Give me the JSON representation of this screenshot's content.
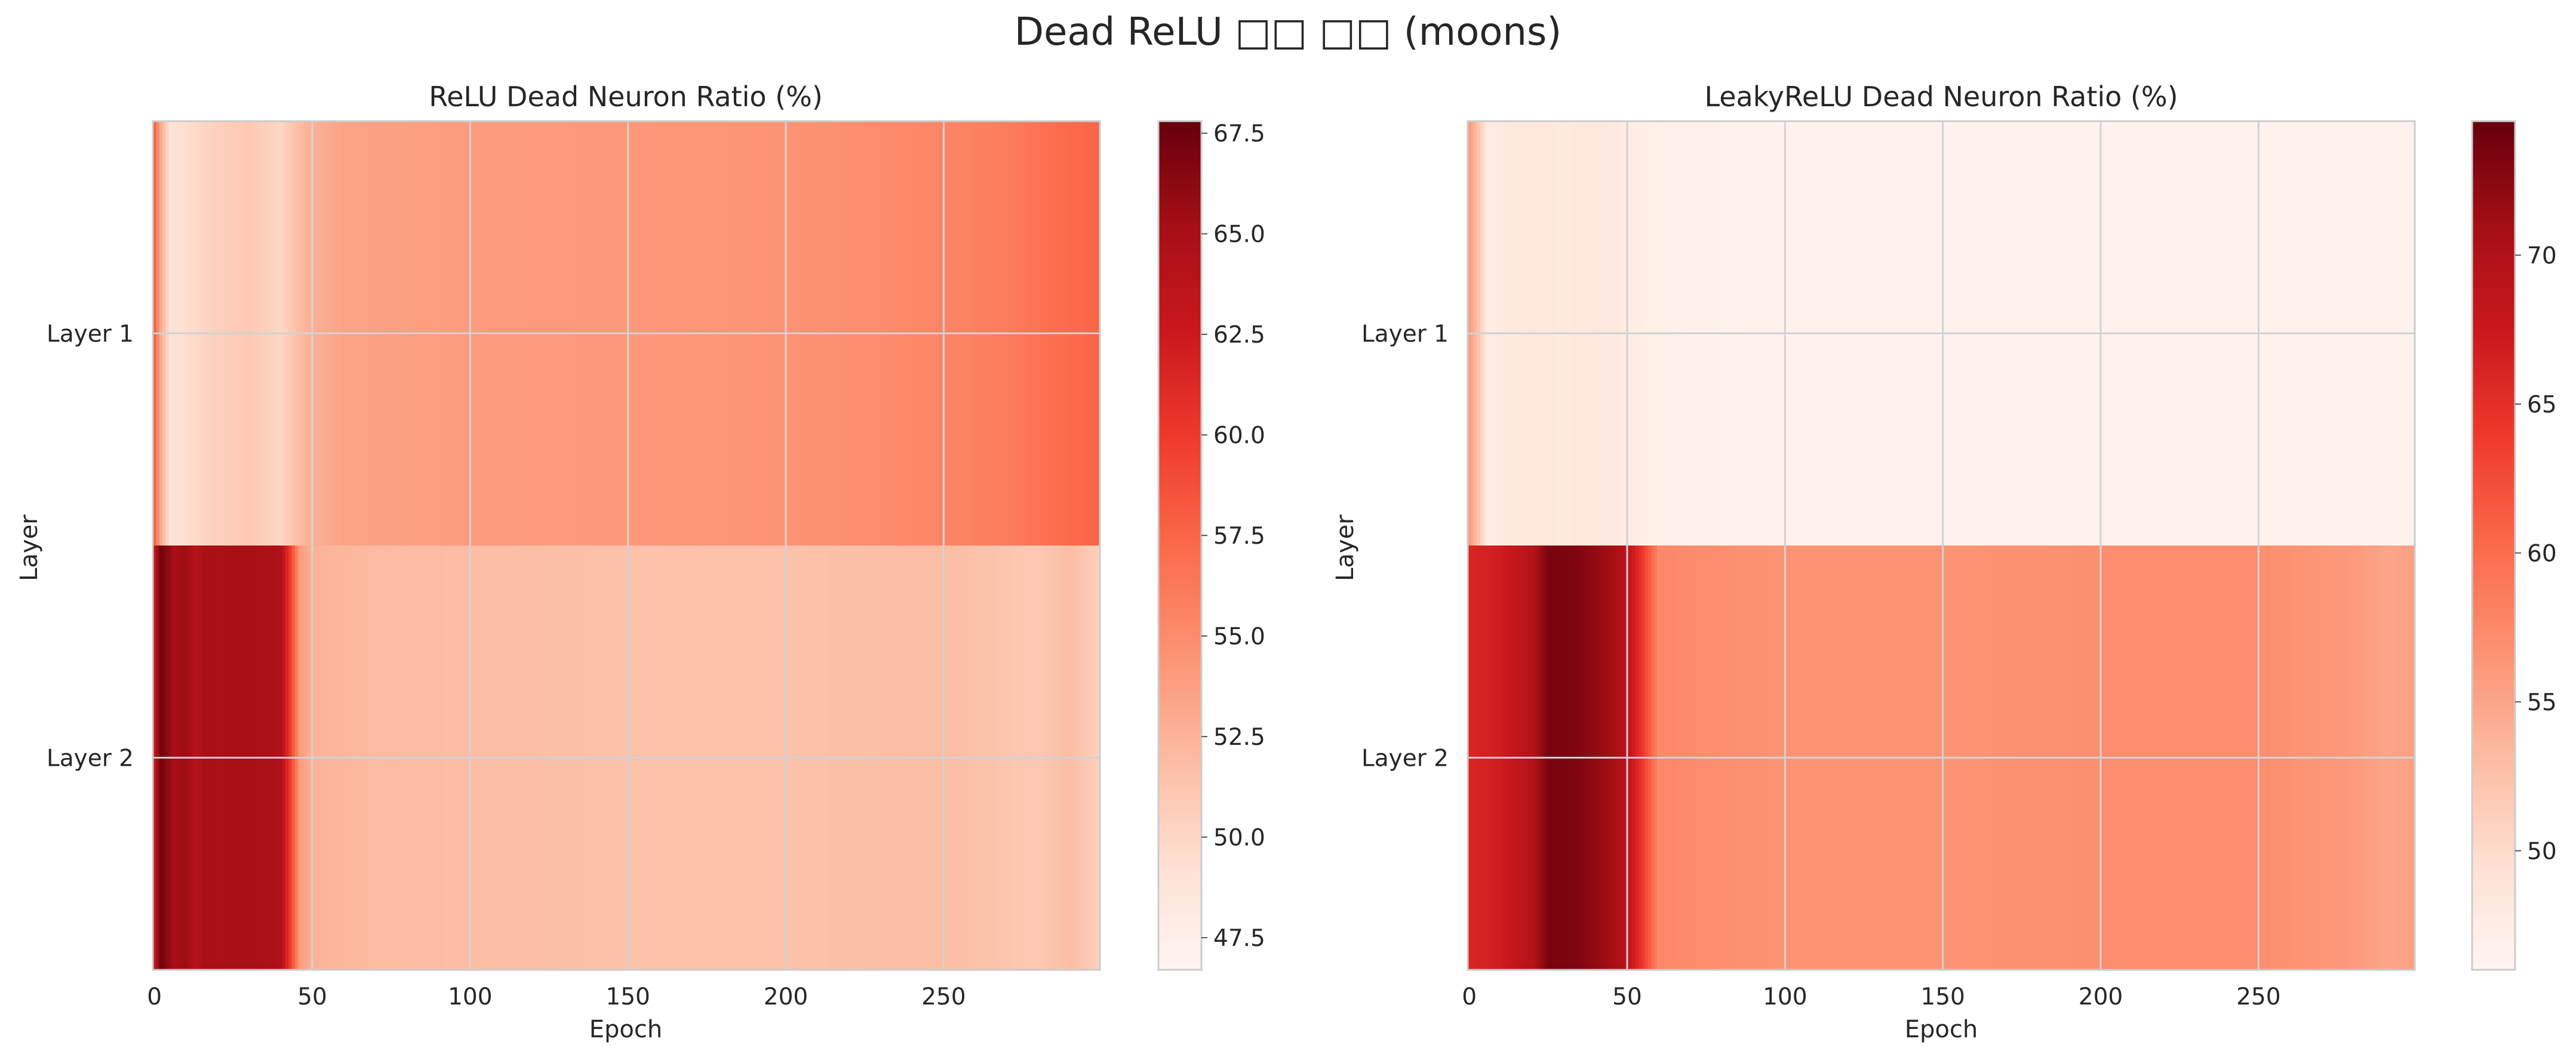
{
  "figure": {
    "title": "Dead ReLU □□ □□ (moons)"
  },
  "colors": {
    "cmap": [
      "#fff5f0",
      "#fee0d2",
      "#fcbba1",
      "#fc9272",
      "#fb6a4a",
      "#ef3b2c",
      "#cb181d",
      "#a50f15",
      "#67000d"
    ],
    "grid": "#d2d2d2",
    "frame": "#cccccc"
  },
  "chart_data": [
    {
      "type": "heatmap",
      "title": "ReLU Dead Neuron Ratio (%)",
      "xlabel": "Epoch",
      "ylabel": "Layer",
      "rows": [
        "Layer 1",
        "Layer 2"
      ],
      "xlim": [
        0,
        299
      ],
      "xticks": [
        0,
        50,
        100,
        150,
        200,
        250
      ],
      "colorbar": {
        "min": 46.7,
        "max": 67.8,
        "ticks": [
          "47.5",
          "50.0",
          "52.5",
          "55.0",
          "57.5",
          "60.0",
          "62.5",
          "65.0",
          "67.5"
        ]
      },
      "segments": [
        {
          "row": "Layer 1",
          "points": [
            [
              0,
              58.0
            ],
            [
              2,
              53.0
            ],
            [
              5,
              49.0
            ],
            [
              10,
              49.5
            ],
            [
              20,
              50.5
            ],
            [
              30,
              51.0
            ],
            [
              40,
              50.0
            ],
            [
              48,
              52.5
            ],
            [
              60,
              53.5
            ],
            [
              100,
              54.0
            ],
            [
              150,
              54.2
            ],
            [
              200,
              54.5
            ],
            [
              230,
              55.0
            ],
            [
              250,
              55.5
            ],
            [
              270,
              56.0
            ],
            [
              285,
              57.0
            ],
            [
              299,
              57.5
            ]
          ]
        },
        {
          "row": "Layer 2",
          "points": [
            [
              0,
              63.0
            ],
            [
              2,
              67.5
            ],
            [
              6,
              65.0
            ],
            [
              10,
              65.5
            ],
            [
              13,
              64.0
            ],
            [
              16,
              65.0
            ],
            [
              20,
              64.8
            ],
            [
              30,
              65.0
            ],
            [
              40,
              64.5
            ],
            [
              43,
              60.0
            ],
            [
              46,
              54.0
            ],
            [
              50,
              52.5
            ],
            [
              70,
              52.0
            ],
            [
              150,
              51.5
            ],
            [
              200,
              51.5
            ],
            [
              250,
              51.8
            ],
            [
              280,
              51.0
            ],
            [
              290,
              51.8
            ],
            [
              299,
              50.5
            ]
          ]
        }
      ]
    },
    {
      "type": "heatmap",
      "title": "LeakyReLU Dead Neuron Ratio (%)",
      "xlabel": "Epoch",
      "ylabel": "Layer",
      "rows": [
        "Layer 1",
        "Layer 2"
      ],
      "xlim": [
        0,
        299
      ],
      "xticks": [
        0,
        50,
        100,
        150,
        200,
        250
      ],
      "colorbar": {
        "min": 46.0,
        "max": 74.5,
        "ticks": [
          "50",
          "55",
          "60",
          "65",
          "70"
        ]
      },
      "segments": [
        {
          "row": "Layer 1",
          "points": [
            [
              0,
              56.0
            ],
            [
              3,
              52.0
            ],
            [
              6,
              47.5
            ],
            [
              12,
              48.0
            ],
            [
              20,
              48.5
            ],
            [
              30,
              48.0
            ],
            [
              40,
              48.5
            ],
            [
              50,
              47.5
            ],
            [
              60,
              46.8
            ],
            [
              100,
              46.5
            ],
            [
              200,
              46.5
            ],
            [
              299,
              46.5
            ]
          ]
        },
        {
          "row": "Layer 2",
          "points": [
            [
              0,
              66.0
            ],
            [
              10,
              67.0
            ],
            [
              20,
              69.5
            ],
            [
              25,
              73.5
            ],
            [
              35,
              73.0
            ],
            [
              45,
              71.0
            ],
            [
              50,
              69.0
            ],
            [
              55,
              64.0
            ],
            [
              60,
              57.5
            ],
            [
              100,
              56.5
            ],
            [
              150,
              56.5
            ],
            [
              200,
              57.0
            ],
            [
              250,
              57.0
            ],
            [
              280,
              56.0
            ],
            [
              290,
              55.0
            ],
            [
              299,
              55.5
            ]
          ]
        }
      ]
    }
  ]
}
